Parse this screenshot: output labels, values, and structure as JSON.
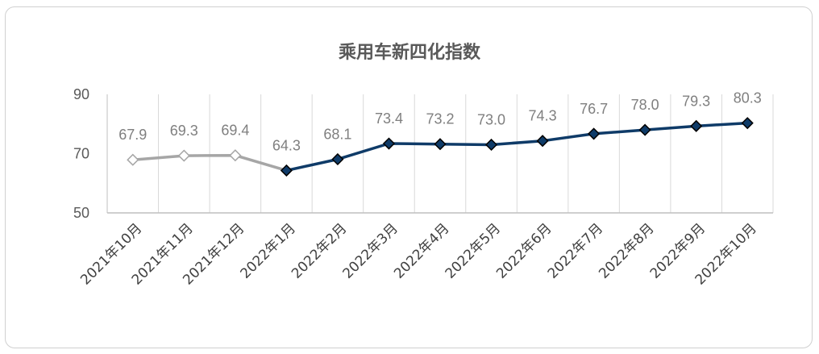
{
  "chart_data": {
    "type": "line",
    "title": "乘用车新四化指数",
    "categories": [
      "2021年10月",
      "2021年11月",
      "2021年12月",
      "2022年1月",
      "2022年2月",
      "2022年3月",
      "2022年4月",
      "2022年5月",
      "2022年6月",
      "2022年7月",
      "2022年8月",
      "2022年9月",
      "2022年10月"
    ],
    "values": [
      67.9,
      69.3,
      69.4,
      64.3,
      68.1,
      73.4,
      73.2,
      73.0,
      74.3,
      76.7,
      78.0,
      79.3,
      80.3
    ],
    "data_labels": [
      "67.9",
      "69.3",
      "69.4",
      "64.3",
      "68.1",
      "73.4",
      "73.2",
      "73.0",
      "74.3",
      "76.7",
      "78.0",
      "79.3",
      "80.3"
    ],
    "ylim": [
      50,
      90
    ],
    "yticks": [
      "90",
      "70",
      "50"
    ],
    "ytick_values": [
      90,
      70,
      50
    ],
    "grid": "vertical",
    "segments": [
      {
        "from": 0,
        "to": 3,
        "color": "#a6a6a6",
        "marker_fill": "#ffffff",
        "marker_stroke": "#a6a6a6"
      },
      {
        "from": 3,
        "to": 12,
        "color": "#0f3b68",
        "marker_fill": "#0f3b68",
        "marker_stroke": "#000000"
      }
    ],
    "grid_color": "#d9d9d9",
    "axis_color": "#bfbfbf"
  }
}
